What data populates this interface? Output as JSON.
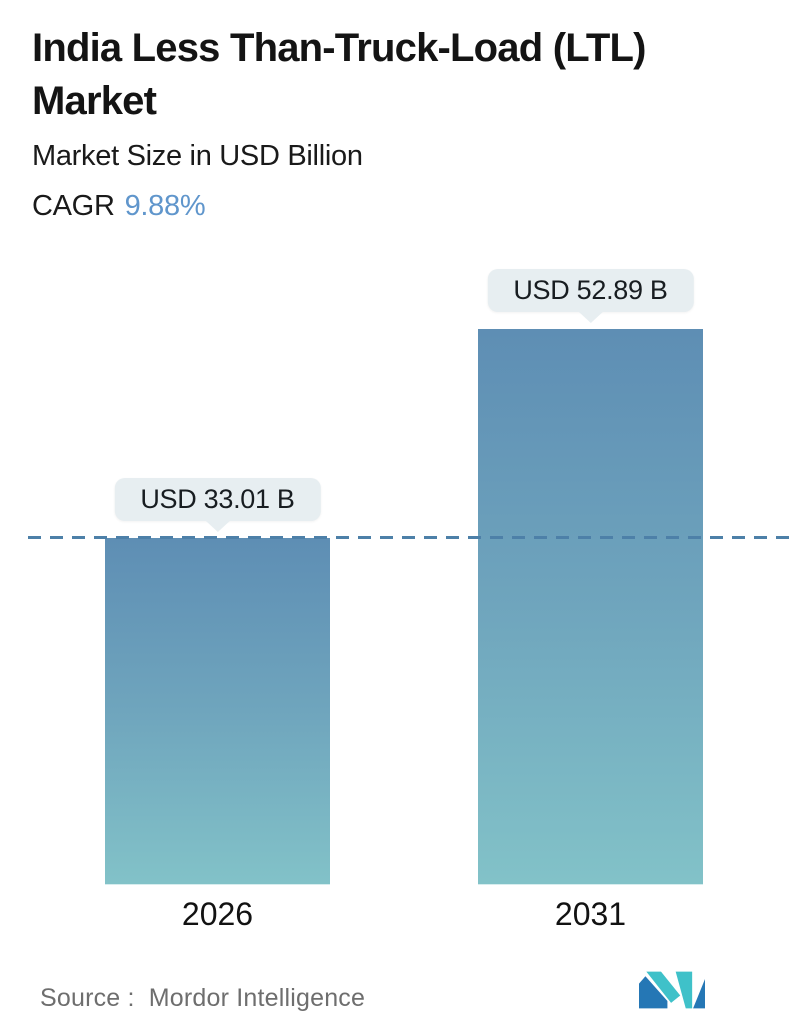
{
  "header": {
    "title_line1": "India Less Than-Truck-Load (LTL)",
    "title_line2": "Market",
    "subtitle": "Market Size in USD Billion",
    "cagr_label": "CAGR",
    "cagr_value": "9.88%"
  },
  "chart_data": {
    "type": "bar",
    "title": "India Less Than-Truck-Load (LTL) Market",
    "subtitle": "Market Size in USD Billion",
    "cagr": "9.88%",
    "categories": [
      "2026",
      "2031"
    ],
    "values": [
      33.01,
      52.89
    ],
    "unit": "USD Billion",
    "value_labels": [
      "USD 33.01 B",
      "USD 52.89 B"
    ],
    "ylim": [
      0,
      53
    ],
    "grid": false,
    "legend": false,
    "annotations": [
      "horizontal dashed reference line at 2026 value (USD 33.01 B) spanning full width"
    ],
    "bar_gradient": "steel blue at top to soft teal at bottom"
  },
  "bars": [
    {
      "year": "2026",
      "label": "USD 33.01 B"
    },
    {
      "year": "2031",
      "label": "USD 52.89 B"
    }
  ],
  "footer": {
    "source_label": "Source :",
    "source_value": "Mordor Intelligence",
    "logo": "mordor-intelligence-logo"
  },
  "colors": {
    "bar_top": "#5e8eb4",
    "bar_mid": "#6fa5bd",
    "bar_bottom": "#82c2c8",
    "dashed_line": "#4d80a8",
    "cagr_value": "#6096cc",
    "tooltip_bg": "#e7eef1",
    "logo_blue": "#2577b5",
    "logo_teal": "#3fc1c9"
  }
}
